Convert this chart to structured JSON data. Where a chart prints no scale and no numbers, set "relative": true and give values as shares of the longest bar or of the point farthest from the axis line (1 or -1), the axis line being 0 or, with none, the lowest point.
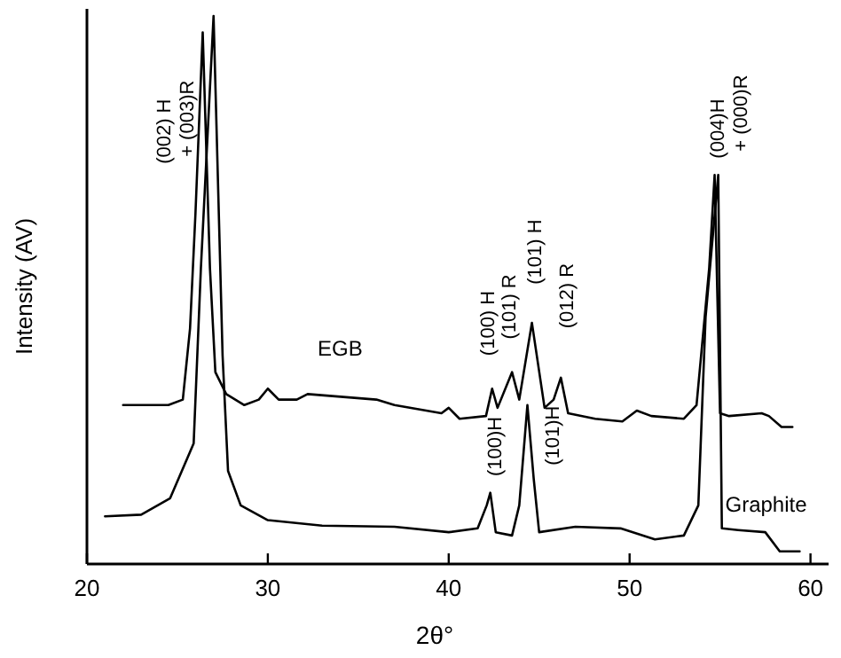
{
  "chart_data": {
    "type": "line",
    "relative": true,
    "xlabel": "2θ°",
    "ylabel": "Intensity (AV)",
    "xlim": [
      20,
      61
    ],
    "xticks": [
      20,
      30,
      40,
      50,
      60
    ],
    "grid": false,
    "legend": false,
    "marker": "none",
    "line_style": "solid",
    "series": [
      {
        "name": "EGB",
        "color": "#000000",
        "x": [
          22,
          23.5,
          24.5,
          25.3,
          25.7,
          26.0,
          26.4,
          26.8,
          27.1,
          27.7,
          28.7,
          29.5,
          30.0,
          30.6,
          31.6,
          32.2,
          36,
          37,
          39.6,
          40.0,
          40.6,
          42.06,
          42.4,
          42.7,
          43.5,
          43.9,
          44.6,
          45.3,
          45.8,
          46.2,
          46.6,
          48.1,
          49.6,
          50.4,
          51.2,
          53.0,
          53.7,
          54.4,
          54.7,
          55.0,
          55.5,
          57.3,
          57.7,
          58.4,
          59.0
        ],
        "values": [
          0.29,
          0.29,
          0.29,
          0.3,
          0.43,
          0.64,
          0.97,
          0.54,
          0.35,
          0.31,
          0.29,
          0.3,
          0.32,
          0.3,
          0.3,
          0.31,
          0.3,
          0.29,
          0.275,
          0.285,
          0.265,
          0.27,
          0.32,
          0.285,
          0.35,
          0.3,
          0.44,
          0.285,
          0.3,
          0.34,
          0.275,
          0.265,
          0.26,
          0.28,
          0.27,
          0.265,
          0.29,
          0.54,
          0.71,
          0.275,
          0.27,
          0.275,
          0.27,
          0.25,
          0.25
        ]
      },
      {
        "name": "Graphite",
        "color": "#000000",
        "x": [
          21,
          23,
          24.6,
          25.9,
          26.3,
          27.0,
          27.5,
          27.8,
          28.5,
          30,
          33,
          37,
          40,
          41.6,
          42.1,
          42.3,
          42.6,
          43.5,
          43.9,
          44.35,
          44.7,
          45.0,
          47,
          49.5,
          51.4,
          53,
          53.8,
          54.2,
          54.9,
          55.1,
          56,
          57.5,
          58.3,
          59.4
        ],
        "values": [
          0.087,
          0.09,
          0.12,
          0.22,
          0.54,
          1,
          0.38,
          0.17,
          0.107,
          0.08,
          0.07,
          0.068,
          0.058,
          0.065,
          0.107,
          0.13,
          0.058,
          0.052,
          0.107,
          0.29,
          0.155,
          0.058,
          0.068,
          0.065,
          0.045,
          0.052,
          0.107,
          0.45,
          0.71,
          0.065,
          0.062,
          0.058,
          0.023,
          0.023
        ]
      }
    ],
    "annotations": [
      "(002) H\n+ (003)R",
      "(100) H",
      "(101) R",
      "(101) H",
      "(012) R",
      "(100)H",
      "(101)H",
      "(004)H\n+ (000)R"
    ]
  }
}
